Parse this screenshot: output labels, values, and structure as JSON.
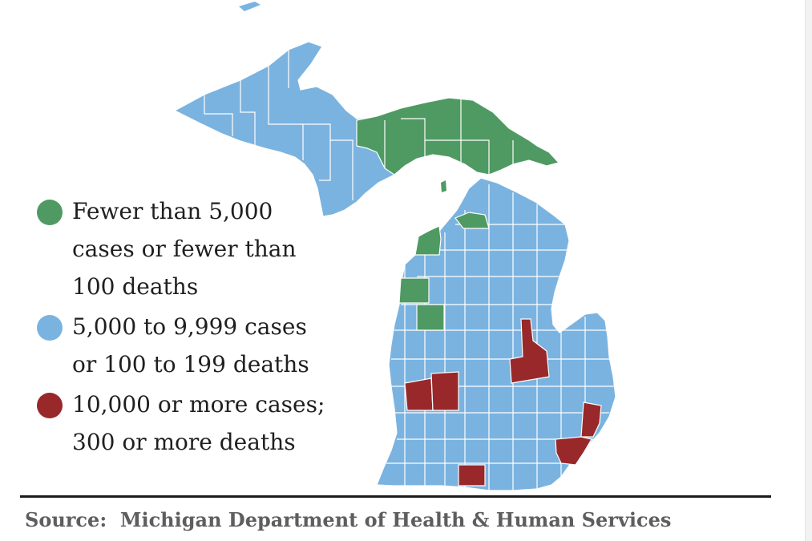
{
  "map": {
    "region": "Michigan",
    "colors": {
      "green": "#4f9a62",
      "blue": "#7ab3e0",
      "red": "#98282a",
      "border": "#ffffff"
    }
  },
  "legend": {
    "items": [
      {
        "label": "Fewer than 5,000\ncases or fewer than\n100 deaths",
        "color": "#4f9a62"
      },
      {
        "label": "5,000 to 9,999 cases\nor 100 to 199 deaths",
        "color": "#7ab3e0"
      },
      {
        "label": "10,000 or more cases;\n300 or more deaths",
        "color": "#98282a"
      }
    ]
  },
  "source": {
    "text": "Source:  Michigan Department of Health & Human Services"
  }
}
